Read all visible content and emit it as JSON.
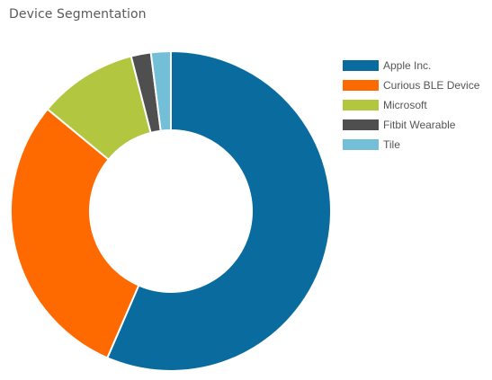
{
  "header": {
    "title": "Device Segmentation"
  },
  "chart_data": {
    "type": "pie",
    "variant": "donut",
    "legend_position": "right",
    "categories": [
      "Apple Inc.",
      "Curious BLE Device",
      "Microsoft",
      "Fitbit Wearable",
      "Tile"
    ],
    "values": [
      56.5,
      29.5,
      10.0,
      2.0,
      2.0
    ],
    "unit": "percent",
    "colors": [
      "#0a6b9e",
      "#ff6a00",
      "#b2c63f",
      "#4f4f4f",
      "#74bfd8"
    ]
  }
}
